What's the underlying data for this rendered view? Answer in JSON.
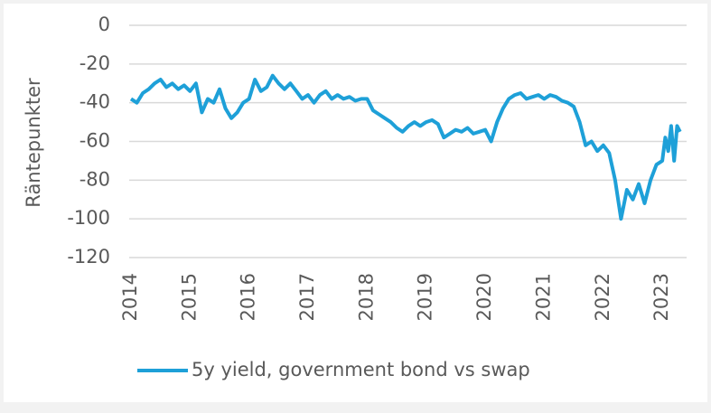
{
  "chart_data": {
    "type": "line",
    "y_label": "Räntepunkter",
    "x": [
      2014.0,
      2014.1,
      2014.2,
      2014.3,
      2014.4,
      2014.5,
      2014.6,
      2014.7,
      2014.8,
      2014.9,
      2015.0,
      2015.1,
      2015.2,
      2015.3,
      2015.4,
      2015.5,
      2015.6,
      2015.7,
      2015.8,
      2015.9,
      2016.0,
      2016.1,
      2016.2,
      2016.3,
      2016.4,
      2016.5,
      2016.6,
      2016.7,
      2016.8,
      2016.9,
      2017.0,
      2017.1,
      2017.2,
      2017.3,
      2017.4,
      2017.5,
      2017.6,
      2017.7,
      2017.8,
      2017.9,
      2018.0,
      2018.1,
      2018.2,
      2018.3,
      2018.4,
      2018.5,
      2018.6,
      2018.7,
      2018.8,
      2018.9,
      2019.0,
      2019.1,
      2019.2,
      2019.3,
      2019.4,
      2019.5,
      2019.6,
      2019.7,
      2019.8,
      2019.9,
      2020.0,
      2020.1,
      2020.2,
      2020.3,
      2020.4,
      2020.5,
      2020.6,
      2020.7,
      2020.8,
      2020.9,
      2021.0,
      2021.1,
      2021.2,
      2021.3,
      2021.4,
      2021.5,
      2021.6,
      2021.7,
      2021.8,
      2021.9,
      2022.0,
      2022.1,
      2022.2,
      2022.3,
      2022.4,
      2022.5,
      2022.6,
      2022.7,
      2022.8,
      2022.9,
      2023.0,
      2023.05,
      2023.1,
      2023.15,
      2023.2,
      2023.25,
      2023.3
    ],
    "series": [
      {
        "name": "5y yield, government bond vs swap",
        "color": "#1ea0d8",
        "values": [
          -38,
          -40,
          -35,
          -33,
          -30,
          -28,
          -32,
          -30,
          -33,
          -31,
          -34,
          -30,
          -45,
          -38,
          -40,
          -33,
          -43,
          -48,
          -45,
          -40,
          -38,
          -28,
          -34,
          -32,
          -26,
          -30,
          -33,
          -30,
          -34,
          -38,
          -36,
          -40,
          -36,
          -34,
          -38,
          -36,
          -38,
          -37,
          -39,
          -38,
          -38,
          -44,
          -46,
          -48,
          -50,
          -53,
          -55,
          -52,
          -50,
          -52,
          -50,
          -49,
          -51,
          -58,
          -56,
          -54,
          -55,
          -53,
          -56,
          -55,
          -54,
          -60,
          -50,
          -43,
          -38,
          -36,
          -35,
          -38,
          -37,
          -36,
          -38,
          -36,
          -37,
          -39,
          -40,
          -42,
          -50,
          -62,
          -60,
          -65,
          -62,
          -66,
          -80,
          -100,
          -85,
          -90,
          -82,
          -92,
          -80,
          -72,
          -70,
          -58,
          -65,
          -52,
          -70,
          -52,
          -55
        ]
      }
    ],
    "xlim": [
      2014,
      2023.35
    ],
    "xticks": [
      2014,
      2015,
      2016,
      2017,
      2018,
      2019,
      2020,
      2021,
      2022,
      2023
    ],
    "ylim": [
      -120,
      0
    ],
    "yticks": [
      -120,
      -100,
      -80,
      -60,
      -40,
      -20,
      0
    ],
    "grid": true
  }
}
